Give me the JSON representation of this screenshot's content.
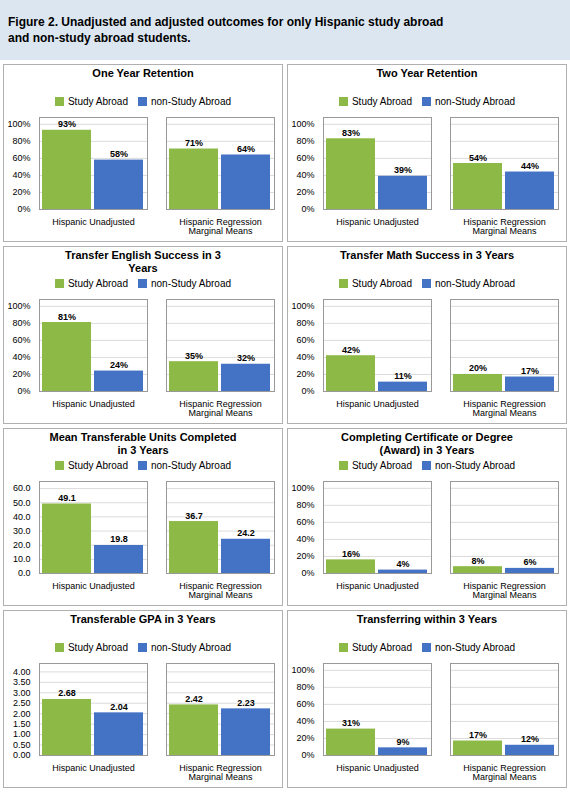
{
  "title": "Figure 2. Unadjusted and adjusted outcomes for only Hispanic study abroad\nand non-study abroad students.",
  "chart_data": [
    {
      "type": "bar",
      "title": "One Year Retention",
      "categories": [
        "Hispanic Unadjusted",
        "Hispanic Regression\nMarginal Means"
      ],
      "series": [
        {
          "name": "Study Abroad",
          "color": "#8db946",
          "values": [
            93,
            71
          ],
          "value_labels": [
            "93%",
            "71%"
          ]
        },
        {
          "name": "non-Study Abroad",
          "color": "#4472c4",
          "values": [
            58,
            64
          ],
          "value_labels": [
            "58%",
            "64%"
          ]
        }
      ],
      "ylim": [
        0,
        108
      ],
      "yticks": [
        {
          "value": 0,
          "label": "0%"
        },
        {
          "value": 20,
          "label": "20%"
        },
        {
          "value": 40,
          "label": "40%"
        },
        {
          "value": 60,
          "label": "60%"
        },
        {
          "value": 80,
          "label": "80%"
        },
        {
          "value": 100,
          "label": "100%"
        }
      ],
      "grid": true,
      "legend": "top",
      "data_labels": true
    },
    {
      "type": "bar",
      "title": "Two Year Retention",
      "categories": [
        "Hispanic Unadjusted",
        "Hispanic Regression\nMarginal Means"
      ],
      "series": [
        {
          "name": "Study Abroad",
          "color": "#8db946",
          "values": [
            83,
            54
          ],
          "value_labels": [
            "83%",
            "54%"
          ]
        },
        {
          "name": "non-Study Abroad",
          "color": "#4472c4",
          "values": [
            39,
            44
          ],
          "value_labels": [
            "39%",
            "44%"
          ]
        }
      ],
      "ylim": [
        0,
        108
      ],
      "yticks": [
        {
          "value": 0,
          "label": "0%"
        },
        {
          "value": 20,
          "label": "20%"
        },
        {
          "value": 40,
          "label": "40%"
        },
        {
          "value": 60,
          "label": "60%"
        },
        {
          "value": 80,
          "label": "80%"
        },
        {
          "value": 100,
          "label": "100%"
        }
      ],
      "grid": true,
      "legend": "top",
      "data_labels": true
    },
    {
      "type": "bar",
      "title": "Transfer English Success in 3\nYears",
      "categories": [
        "Hispanic Unadjusted",
        "Hispanic Regression\nMarginal Means"
      ],
      "series": [
        {
          "name": "Study Abroad",
          "color": "#8db946",
          "values": [
            81,
            35
          ],
          "value_labels": [
            "81%",
            "35%"
          ]
        },
        {
          "name": "non-Study Abroad",
          "color": "#4472c4",
          "values": [
            24,
            32
          ],
          "value_labels": [
            "24%",
            "32%"
          ]
        }
      ],
      "ylim": [
        0,
        108
      ],
      "yticks": [
        {
          "value": 0,
          "label": "0%"
        },
        {
          "value": 20,
          "label": "20%"
        },
        {
          "value": 40,
          "label": "40%"
        },
        {
          "value": 60,
          "label": "60%"
        },
        {
          "value": 80,
          "label": "80%"
        },
        {
          "value": 100,
          "label": "100%"
        }
      ],
      "grid": true,
      "legend": "top",
      "data_labels": true
    },
    {
      "type": "bar",
      "title": "Transfer Math Success in 3 Years",
      "categories": [
        "Hispanic Unadjusted",
        "Hispanic Regression\nMarginal Means"
      ],
      "series": [
        {
          "name": "Study Abroad",
          "color": "#8db946",
          "values": [
            42,
            20
          ],
          "value_labels": [
            "42%",
            "20%"
          ]
        },
        {
          "name": "non-Study Abroad",
          "color": "#4472c4",
          "values": [
            11,
            17
          ],
          "value_labels": [
            "11%",
            "17%"
          ]
        }
      ],
      "ylim": [
        0,
        108
      ],
      "yticks": [
        {
          "value": 0,
          "label": "0%"
        },
        {
          "value": 20,
          "label": "20%"
        },
        {
          "value": 40,
          "label": "40%"
        },
        {
          "value": 60,
          "label": "60%"
        },
        {
          "value": 80,
          "label": "80%"
        },
        {
          "value": 100,
          "label": "100%"
        }
      ],
      "grid": true,
      "legend": "top",
      "data_labels": true
    },
    {
      "type": "bar",
      "title": "Mean Transferable Units Completed\nin 3 Years",
      "categories": [
        "Hispanic Unadjusted",
        "Hispanic Regression\nMarginal Means"
      ],
      "series": [
        {
          "name": "Study Abroad",
          "color": "#8db946",
          "values": [
            49.1,
            36.7
          ]
        },
        {
          "name": "non-Study Abroad",
          "color": "#4472c4",
          "values": [
            19.8,
            24.2
          ]
        }
      ],
      "ylim": [
        0,
        65
      ],
      "yticks": [
        {
          "value": 0,
          "label": "0.0"
        },
        {
          "value": 10,
          "label": "10.0"
        },
        {
          "value": 20,
          "label": "20.0"
        },
        {
          "value": 30,
          "label": "30.0"
        },
        {
          "value": 40,
          "label": "40.0"
        },
        {
          "value": 50,
          "label": "50.0"
        },
        {
          "value": 60,
          "label": "60.0"
        }
      ],
      "grid": true,
      "legend": "top",
      "data_labels": true
    },
    {
      "type": "bar",
      "title": "Completing Certificate or Degree\n(Award) in 3 Years",
      "categories": [
        "Hispanic Unadjusted",
        "Hispanic Regression\nMarginal Means"
      ],
      "series": [
        {
          "name": "Study Abroad",
          "color": "#8db946",
          "values": [
            16,
            8
          ],
          "value_labels": [
            "16%",
            "8%"
          ]
        },
        {
          "name": "non-Study Abroad",
          "color": "#4472c4",
          "values": [
            4,
            6
          ],
          "value_labels": [
            "4%",
            "6%"
          ]
        }
      ],
      "ylim": [
        0,
        108
      ],
      "yticks": [
        {
          "value": 0,
          "label": "0%"
        },
        {
          "value": 20,
          "label": "20%"
        },
        {
          "value": 40,
          "label": "40%"
        },
        {
          "value": 60,
          "label": "60%"
        },
        {
          "value": 80,
          "label": "80%"
        },
        {
          "value": 100,
          "label": "100%"
        }
      ],
      "grid": true,
      "legend": "top",
      "data_labels": true
    },
    {
      "type": "bar",
      "title": "Transferable GPA in 3 Years",
      "categories": [
        "Hispanic Unadjusted",
        "Hispanic Regression\nMarginal Means"
      ],
      "series": [
        {
          "name": "Study Abroad",
          "color": "#8db946",
          "values": [
            2.68,
            2.42
          ]
        },
        {
          "name": "non-Study Abroad",
          "color": "#4472c4",
          "values": [
            2.04,
            2.23
          ]
        }
      ],
      "ylim": [
        0,
        4.4
      ],
      "yticks": [
        {
          "value": 0,
          "label": "0.00"
        },
        {
          "value": 0.5,
          "label": "0.50"
        },
        {
          "value": 1,
          "label": "1.00"
        },
        {
          "value": 1.5,
          "label": "1.50"
        },
        {
          "value": 2,
          "label": "2.00"
        },
        {
          "value": 2.5,
          "label": "2.50"
        },
        {
          "value": 3,
          "label": "3.00"
        },
        {
          "value": 3.5,
          "label": "3.50"
        },
        {
          "value": 4,
          "label": "4.00"
        }
      ],
      "grid": true,
      "legend": "top",
      "data_labels": true
    },
    {
      "type": "bar",
      "title": "Transferring within 3 Years",
      "categories": [
        "Hispanic Unadjusted",
        "Hispanic Regression\nMarginal Means"
      ],
      "series": [
        {
          "name": "Study Abroad",
          "color": "#8db946",
          "values": [
            31,
            17
          ],
          "value_labels": [
            "31%",
            "17%"
          ]
        },
        {
          "name": "non-Study Abroad",
          "color": "#4472c4",
          "values": [
            9,
            12
          ],
          "value_labels": [
            "9%",
            "12%"
          ]
        }
      ],
      "ylim": [
        0,
        108
      ],
      "yticks": [
        {
          "value": 0,
          "label": "0%"
        },
        {
          "value": 20,
          "label": "20%"
        },
        {
          "value": 40,
          "label": "40%"
        },
        {
          "value": 60,
          "label": "60%"
        },
        {
          "value": 80,
          "label": "80%"
        },
        {
          "value": 100,
          "label": "100%"
        }
      ],
      "grid": true,
      "legend": "top",
      "data_labels": true
    }
  ]
}
